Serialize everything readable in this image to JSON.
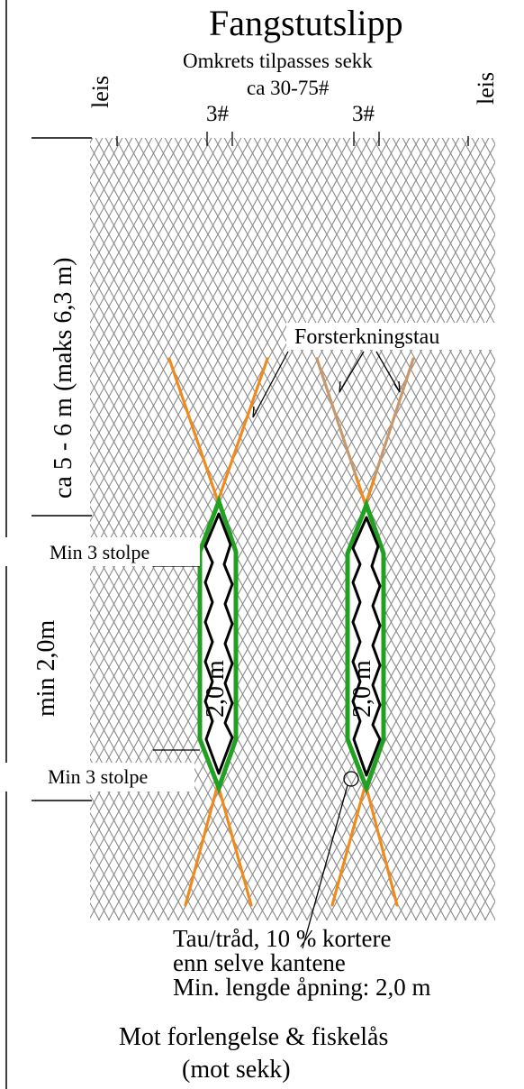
{
  "title": "Fangstutslipp",
  "subtitle_line1": "Omkrets tilpasses sekk",
  "subtitle_line2": "ca 30-75#",
  "selvage_left": "leis",
  "selvage_right": "leis",
  "mesh_count_left": "3#",
  "mesh_count_right": "3#",
  "length_upper": "ca 5 - 6 m (maks 6,3 m)",
  "length_opening": "min 2,0m",
  "reinforcement_label": "Forsterkningstau",
  "min_bars_top": "Min 3 stolpe",
  "min_bars_bottom": "Min 3 stolpe",
  "opening_length_left": "2,0 m",
  "opening_length_right": "2,0 m",
  "rope_note_line1": "Tau/tråd, 10 % kortere",
  "rope_note_line2": "enn selve kantene",
  "rope_note_line3": "Min. lengde åpning: 2,0 m",
  "bottom_line1": "Mot forlengelse & fiskelås",
  "bottom_line2": "(mot sekk)",
  "colors": {
    "mesh": "#8a8a8a",
    "rope": "#f08a1c",
    "rope_faded": "#c8986a",
    "opening_edge": "#22a022",
    "outline": "#000000"
  }
}
